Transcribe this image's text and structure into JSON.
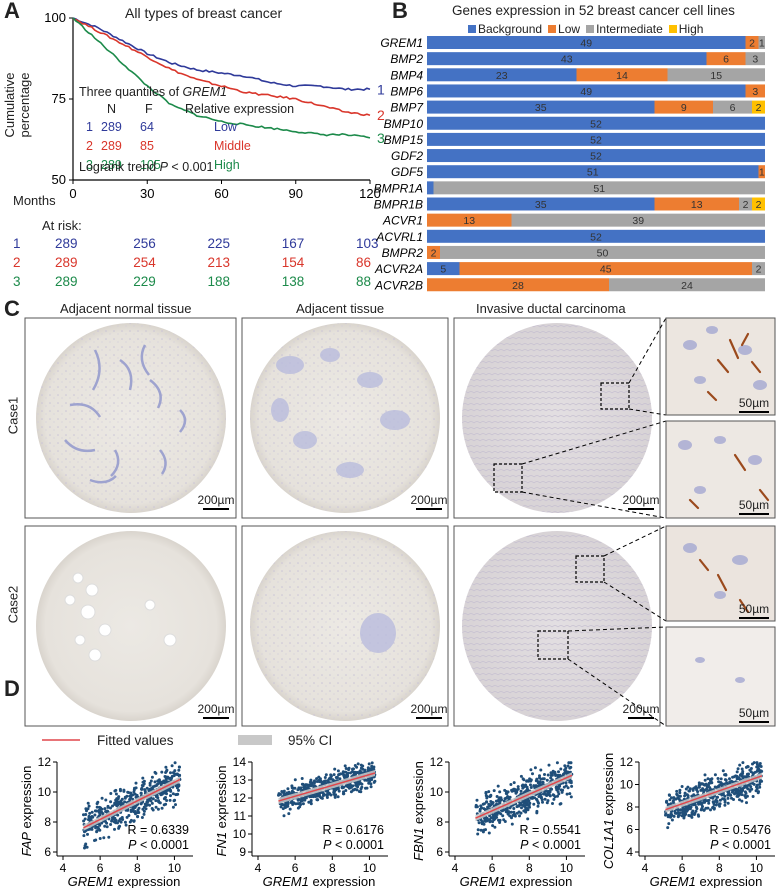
{
  "panels": {
    "A": "A",
    "B": "B",
    "C": "C",
    "D": "D"
  },
  "colors": {
    "low_line": "#2f3a9a",
    "mid_line": "#d9362b",
    "high_line": "#1c8a4a",
    "background": "#4472c4",
    "low": "#ed7d31",
    "intermediate": "#a5a5a5",
    "high": "#ffc000",
    "dot": "#1f4e79",
    "fit": "#e0474c",
    "ci": "#c8c8c8"
  },
  "panelA": {
    "title": "All types of breast cancer",
    "ylabel": "Cumulative percentage",
    "xlabel": "Months",
    "at_risk_label": "At risk:",
    "quantile_title": "Three quantiles of ",
    "quantile_gene": "GREM1",
    "col_n": "N",
    "col_f": "F",
    "col_rel": "Relative expression",
    "groups": [
      {
        "id": "1",
        "n": "289",
        "f": "64",
        "rel": "Low"
      },
      {
        "id": "2",
        "n": "289",
        "f": "85",
        "rel": "Middle"
      },
      {
        "id": "3",
        "n": "289",
        "f": "105",
        "rel": "High"
      }
    ],
    "logrank_prefix": "Logrank trend ",
    "logrank_p": "P",
    "logrank_suffix": " < 0.001",
    "line_labels": [
      "1",
      "2",
      "3"
    ],
    "at_risk": [
      {
        "id": "1",
        "values": [
          "289",
          "256",
          "225",
          "167",
          "103"
        ]
      },
      {
        "id": "2",
        "values": [
          "289",
          "254",
          "213",
          "154",
          "86"
        ]
      },
      {
        "id": "3",
        "values": [
          "289",
          "229",
          "188",
          "138",
          "88"
        ]
      }
    ]
  },
  "chart_data": [
    {
      "type": "line",
      "title": "All types of breast cancer",
      "xlabel": "Months",
      "ylabel": "Cumulative percentage",
      "xlim": [
        0,
        120
      ],
      "ylim": [
        50,
        100
      ],
      "xticks": [
        "0",
        "30",
        "60",
        "90",
        "120"
      ],
      "yticks": [
        "50",
        "75",
        "100"
      ],
      "series": [
        {
          "name": "1",
          "x": [
            0,
            10,
            20,
            30,
            40,
            50,
            60,
            70,
            80,
            90,
            100,
            110,
            120
          ],
          "y": [
            100,
            97,
            93,
            89,
            86,
            84,
            83,
            82,
            80,
            79,
            79,
            78,
            78
          ]
        },
        {
          "name": "2",
          "x": [
            0,
            10,
            20,
            30,
            40,
            50,
            60,
            70,
            80,
            90,
            100,
            110,
            120
          ],
          "y": [
            100,
            96,
            92,
            88,
            84,
            81,
            79,
            77,
            76,
            75,
            73,
            71,
            70
          ]
        },
        {
          "name": "3",
          "x": [
            0,
            10,
            20,
            30,
            40,
            50,
            60,
            70,
            80,
            90,
            100,
            110,
            120
          ],
          "y": [
            100,
            93,
            86,
            79,
            73,
            70,
            68,
            67,
            66,
            65,
            64,
            64,
            63
          ]
        }
      ]
    },
    {
      "type": "bar",
      "title": "Genes expression in 52 breast cancer cell lines",
      "categories": [
        "GREM1",
        "BMP2",
        "BMP4",
        "BMP6",
        "BMP7",
        "BMP10",
        "BMP15",
        "GDF2",
        "GDF5",
        "BMPR1A",
        "BMPR1B",
        "ACVR1",
        "ACVRL1",
        "BMPR2",
        "ACVR2A",
        "ACVR2B"
      ],
      "series": [
        {
          "name": "Background",
          "values": [
            49,
            43,
            23,
            49,
            35,
            52,
            52,
            52,
            51,
            1,
            35,
            0,
            52,
            0,
            5,
            0
          ]
        },
        {
          "name": "Low",
          "values": [
            2,
            6,
            14,
            3,
            9,
            0,
            0,
            0,
            1,
            0,
            13,
            13,
            0,
            2,
            45,
            28
          ]
        },
        {
          "name": "Intermediate",
          "values": [
            1,
            3,
            15,
            0,
            6,
            0,
            0,
            0,
            0,
            51,
            2,
            39,
            0,
            50,
            2,
            24
          ]
        },
        {
          "name": "High",
          "values": [
            0,
            0,
            0,
            0,
            2,
            0,
            0,
            0,
            0,
            0,
            2,
            0,
            0,
            0,
            0,
            0
          ]
        }
      ],
      "labels": [
        [
          "49",
          "2",
          "1",
          ""
        ],
        [
          "43",
          "6",
          "3",
          ""
        ],
        [
          "23",
          "14",
          "15",
          ""
        ],
        [
          "49",
          "3",
          "",
          ""
        ],
        [
          "35",
          "9",
          "6",
          "2"
        ],
        [
          "52",
          "",
          "",
          ""
        ],
        [
          "52",
          "",
          "",
          ""
        ],
        [
          "52",
          "",
          "",
          ""
        ],
        [
          "51",
          "1",
          "",
          ""
        ],
        [
          "",
          "",
          "51",
          ""
        ],
        [
          "35",
          "13",
          "2",
          "2"
        ],
        [
          "",
          "13",
          "39",
          ""
        ],
        [
          "52",
          "",
          "",
          ""
        ],
        [
          "",
          "2",
          "50",
          ""
        ],
        [
          "5",
          "45",
          "2",
          ""
        ],
        [
          "",
          "28",
          "24",
          ""
        ]
      ],
      "total": 52
    },
    {
      "type": "scatter",
      "xlabel_gene": "GREM1",
      "xlabel_suffix": " expression",
      "scatters": [
        {
          "gene": "FAP",
          "r": "R = 0.6339",
          "p": "< 0.0001",
          "ylim": [
            6,
            12
          ],
          "yticks": [
            "6",
            "8",
            "10",
            "12"
          ],
          "slope": 0.62,
          "intercept": 4.45,
          "spread": 0.85
        },
        {
          "gene": "FN1",
          "r": "R = 0.6176",
          "p": "< 0.0001",
          "ylim": [
            9,
            14
          ],
          "yticks": [
            "9",
            "10",
            "11",
            "12",
            "13",
            "14"
          ],
          "slope": 0.3,
          "intercept": 10.3,
          "spread": 0.5
        },
        {
          "gene": "FBN1",
          "r": "R = 0.5541",
          "p": "< 0.0001",
          "ylim": [
            6,
            12
          ],
          "yticks": [
            "6",
            "8",
            "10",
            "12"
          ],
          "slope": 0.55,
          "intercept": 5.45,
          "spread": 0.85
        },
        {
          "gene": "COL1A1",
          "r": "R = 0.5476",
          "p": "< 0.0001",
          "ylim": [
            4,
            12
          ],
          "yticks": [
            "4",
            "6",
            "8",
            "10",
            "12"
          ],
          "slope": 0.58,
          "intercept": 4.8,
          "spread": 1.0
        }
      ],
      "xlim": [
        4,
        11
      ],
      "xticks": [
        "4",
        "6",
        "8",
        "10"
      ]
    }
  ],
  "panelB": {
    "title": "Genes expression in 52 breast cancer cell lines",
    "legend": [
      "Background",
      "Low",
      "Intermediate",
      "High"
    ]
  },
  "panelC": {
    "columns": [
      "Adjacent normal tissue",
      "Adjacent tissue",
      "Invasive ductal carcinoma"
    ],
    "rows": [
      "Case1",
      "Case2"
    ],
    "scale_large": "200µm",
    "scale_small": "50µm"
  },
  "panelD": {
    "legend_fit": "Fitted values",
    "legend_ci": "95% CI",
    "ylabel_suffix": " expression",
    "p_label": "P"
  }
}
